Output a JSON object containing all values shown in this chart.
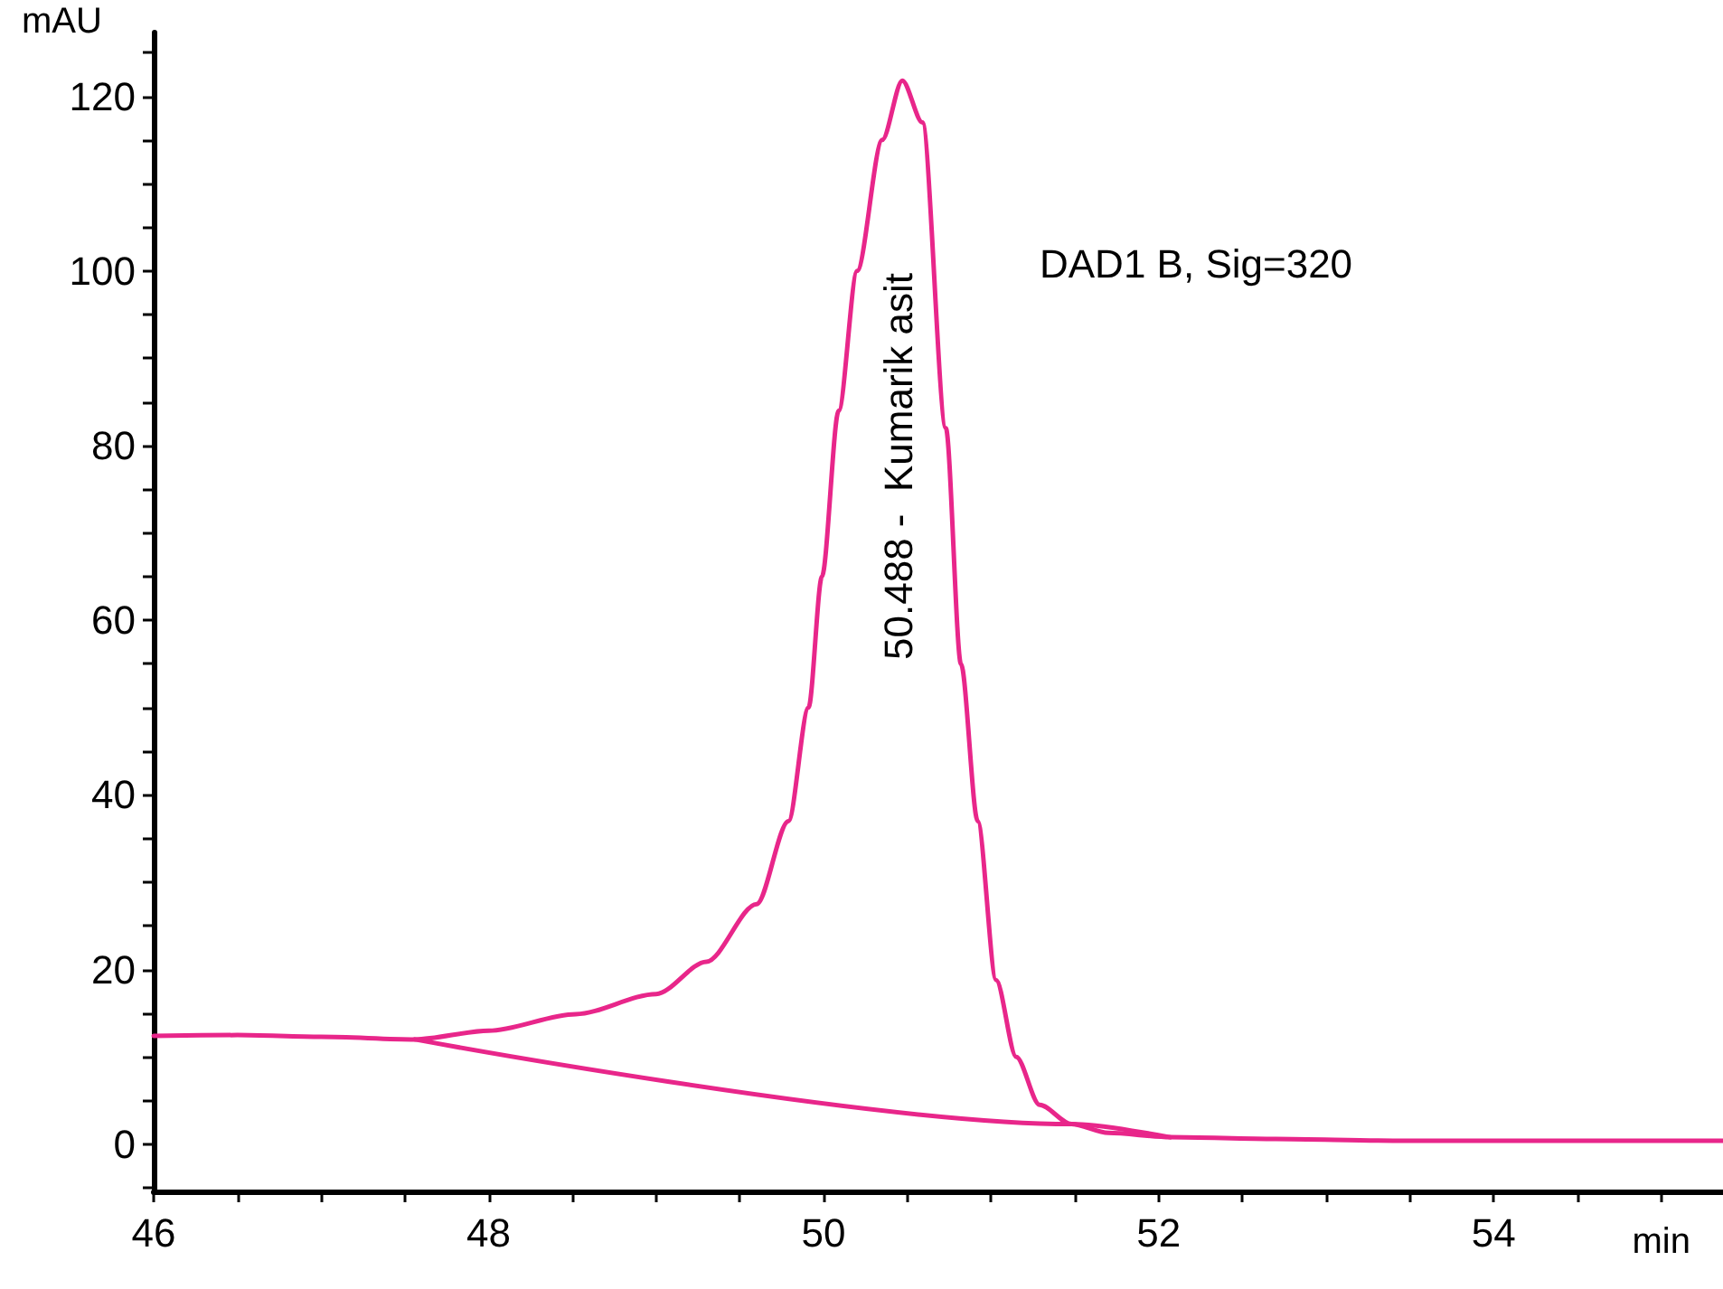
{
  "chart_data": {
    "type": "line",
    "xlabel": "min",
    "ylabel": "mAU",
    "xlim": [
      46,
      55.37
    ],
    "xticks": [
      46,
      48,
      50,
      52,
      54
    ],
    "ylim": [
      -5.4,
      127.3
    ],
    "yticks": [
      0,
      20,
      40,
      60,
      80,
      100,
      120
    ],
    "grid": false,
    "marker": "none",
    "line_style": "solid",
    "series": [
      {
        "color": "#e8268a",
        "x": [
          46,
          46.5,
          47,
          47.56,
          48.0,
          48.52,
          49.0,
          49.3,
          49.6,
          49.79,
          49.91,
          49.99,
          50.09,
          50.2,
          50.35,
          50.47,
          50.59,
          50.73,
          50.82,
          50.92,
          51.03,
          51.15,
          51.29,
          51.48,
          51.7,
          52.07,
          52.7,
          53.4,
          54.5,
          55.37
        ],
        "values": [
          12.4,
          12.5,
          12.3,
          12.0,
          13.0,
          14.9,
          17.2,
          20.9,
          27.5,
          37,
          50,
          65,
          84,
          100,
          115,
          121.8,
          117,
          82,
          55,
          37,
          18.8,
          10,
          4.5,
          2.3,
          1.3,
          0.8,
          0.6,
          0.4,
          0.4,
          0.4
        ]
      },
      {
        "color": "#e8268a",
        "x": [
          47.56,
          51.48,
          52.07
        ],
        "values": [
          12.0,
          2.3,
          0.8
        ]
      }
    ],
    "annotations": [
      "50.488 -  Kumarik asit",
      "DAD1 B, Sig=320"
    ]
  }
}
